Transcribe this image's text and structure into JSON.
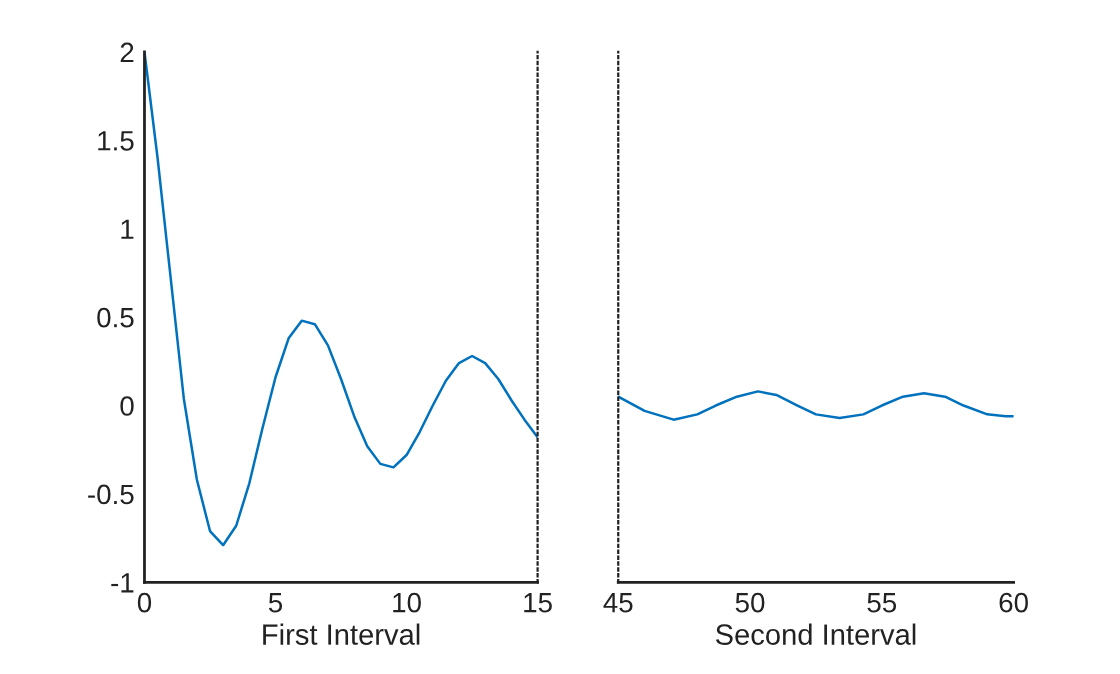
{
  "chart_data": [
    {
      "type": "line",
      "xlabel": "First Interval",
      "color": "#0072bd",
      "x": [
        0,
        0.5,
        1,
        1.5,
        2,
        2.5,
        3,
        3.5,
        4,
        4.5,
        5,
        5.5,
        6,
        6.5,
        7,
        7.5,
        8,
        8.5,
        9,
        9.5,
        10,
        10.5,
        11,
        11.5,
        12,
        12.5,
        13,
        13.5,
        14,
        14.5,
        15
      ],
      "values": [
        2.0,
        1.4,
        0.72,
        0.04,
        -0.42,
        -0.71,
        -0.79,
        -0.68,
        -0.44,
        -0.13,
        0.16,
        0.38,
        0.48,
        0.46,
        0.34,
        0.15,
        -0.06,
        -0.23,
        -0.33,
        -0.35,
        -0.28,
        -0.15,
        0.0,
        0.14,
        0.24,
        0.28,
        0.24,
        0.15,
        0.03,
        -0.08,
        -0.18
      ],
      "xlim": [
        0,
        15
      ],
      "xticks": [
        0,
        5,
        10,
        15
      ],
      "ylim": [
        -1,
        2
      ],
      "yticks": [
        -1,
        -0.5,
        0,
        0.5,
        1,
        1.5,
        2
      ]
    },
    {
      "type": "line",
      "xlabel": "Second Interval",
      "color": "#0072bd",
      "x": [
        45,
        46,
        47.1,
        48,
        48.7,
        49.5,
        50.3,
        51,
        51.8,
        52.5,
        53.4,
        54.3,
        55,
        55.8,
        56.6,
        57.4,
        58.1,
        59,
        59.7,
        60
      ],
      "values": [
        0.05,
        -0.03,
        -0.08,
        -0.05,
        0.0,
        0.05,
        0.08,
        0.06,
        0.0,
        -0.05,
        -0.07,
        -0.05,
        0.0,
        0.05,
        0.07,
        0.05,
        0.0,
        -0.05,
        -0.06,
        -0.06
      ],
      "xlim": [
        45,
        60
      ],
      "xticks": [
        45,
        50,
        55,
        60
      ],
      "ylim": [
        -1,
        2
      ],
      "tick_labels": "x"
    }
  ]
}
